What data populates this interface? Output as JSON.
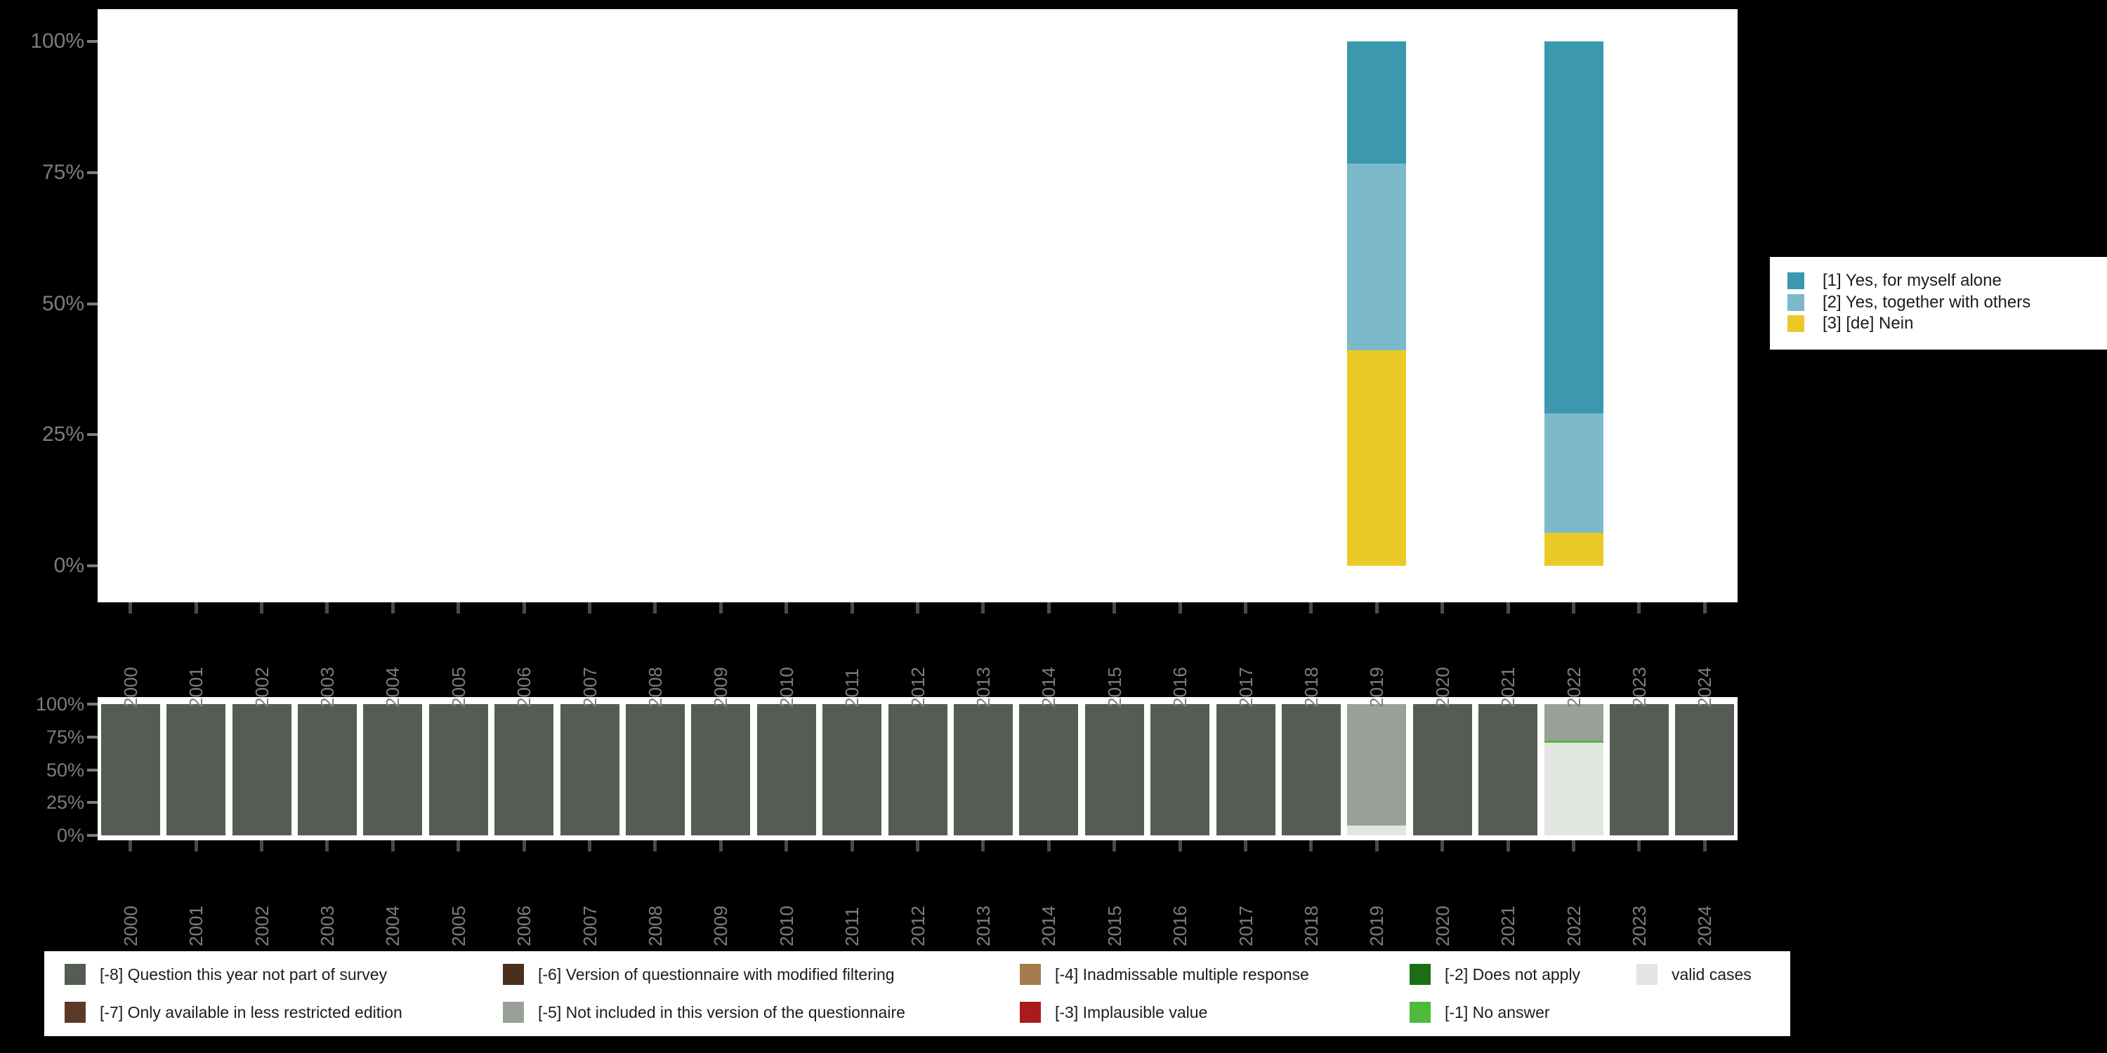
{
  "page": {
    "background": "#000000"
  },
  "chart_data": [
    {
      "id": "responses",
      "type": "bar",
      "stacked": true,
      "unit": "percent",
      "title": "",
      "xlabel": "",
      "ylabel": "",
      "ylim": [
        0,
        100
      ],
      "grid": false,
      "legend_position": "right",
      "y_tick_labels": [
        "100%",
        "75%",
        "50%",
        "25%",
        "0%"
      ],
      "categories": [
        "2000",
        "2001",
        "2002",
        "2003",
        "2004",
        "2005",
        "2006",
        "2007",
        "2008",
        "2009",
        "2010",
        "2011",
        "2012",
        "2013",
        "2014",
        "2015",
        "2016",
        "2017",
        "2018",
        "2019",
        "2020",
        "2021",
        "2022",
        "2023",
        "2024"
      ],
      "legend": [
        {
          "code": "1",
          "label": "[1] Yes, for myself alone",
          "color": "#3b98af"
        },
        {
          "code": "2",
          "label": "[2] Yes, together with others",
          "color": "#7cbacb"
        },
        {
          "code": "3",
          "label": "[3] [de] Nein",
          "color": "#ebca28"
        }
      ],
      "stack_order_bottom_up": [
        "3",
        "2",
        "1"
      ],
      "series": [
        {
          "name": "[1] Yes, for myself alone",
          "code": "1",
          "values": {
            "2019": 23.3,
            "2022": 70.9
          }
        },
        {
          "name": "[2] Yes, together with others",
          "code": "2",
          "values": {
            "2019": 35.6,
            "2022": 22.8
          }
        },
        {
          "name": "[3] [de] Nein",
          "code": "3",
          "values": {
            "2019": 41.1,
            "2022": 6.3
          }
        }
      ]
    },
    {
      "id": "missings",
      "type": "bar",
      "stacked": true,
      "unit": "percent",
      "title": "",
      "xlabel": "",
      "ylabel": "",
      "ylim": [
        0,
        100
      ],
      "grid": false,
      "legend_position": "bottom",
      "y_tick_labels": [
        "100%",
        "75%",
        "50%",
        "25%",
        "0%"
      ],
      "categories": [
        "2000",
        "2001",
        "2002",
        "2003",
        "2004",
        "2005",
        "2006",
        "2007",
        "2008",
        "2009",
        "2010",
        "2011",
        "2012",
        "2013",
        "2014",
        "2015",
        "2016",
        "2017",
        "2018",
        "2019",
        "2020",
        "2021",
        "2022",
        "2023",
        "2024"
      ],
      "legend": [
        {
          "code": "-8",
          "label": "[-8] Question this year not part of survey",
          "color": "#555c54"
        },
        {
          "code": "-7",
          "label": "[-7] Only available in less restricted edition",
          "color": "#5c3a26"
        },
        {
          "code": "-6",
          "label": "[-6] Version of questionnaire with modified filtering",
          "color": "#4a2f1c"
        },
        {
          "code": "-5",
          "label": "[-5] Not included in this version of the questionnaire",
          "color": "#99a098"
        },
        {
          "code": "-4",
          "label": "[-4] Inadmissable multiple response",
          "color": "#a67c4e"
        },
        {
          "code": "-3",
          "label": "[-3] Implausible value",
          "color": "#a81c1c"
        },
        {
          "code": "-2",
          "label": "[-2] Does not apply",
          "color": "#1c6e16"
        },
        {
          "code": "-1",
          "label": "[-1] No answer",
          "color": "#4eba3c"
        },
        {
          "code": "valid",
          "label": "valid cases",
          "color": "#e2e6e0"
        }
      ],
      "stack_order_bottom_up": [
        "valid",
        "-1",
        "-2",
        "-3",
        "-4",
        "-5",
        "-6",
        "-7",
        "-8"
      ],
      "series": [
        {
          "name": "[-8] Question this year not part of survey",
          "code": "-8",
          "values": {
            "2000": 100,
            "2001": 100,
            "2002": 100,
            "2003": 100,
            "2004": 100,
            "2005": 100,
            "2006": 100,
            "2007": 100,
            "2008": 100,
            "2009": 100,
            "2010": 100,
            "2011": 100,
            "2012": 100,
            "2013": 100,
            "2014": 100,
            "2015": 100,
            "2016": 100,
            "2017": 100,
            "2018": 100,
            "2020": 100,
            "2021": 100,
            "2023": 100,
            "2024": 100
          }
        },
        {
          "name": "[-5] Not included in this version of the questionnaire",
          "code": "-5",
          "values": {
            "2019": 92.5,
            "2022": 27.8
          }
        },
        {
          "name": "[-1] No answer",
          "code": "-1",
          "values": {
            "2022": 1.6
          }
        },
        {
          "name": "valid cases",
          "code": "valid",
          "values": {
            "2019": 7.5,
            "2022": 70.6
          }
        }
      ]
    }
  ]
}
